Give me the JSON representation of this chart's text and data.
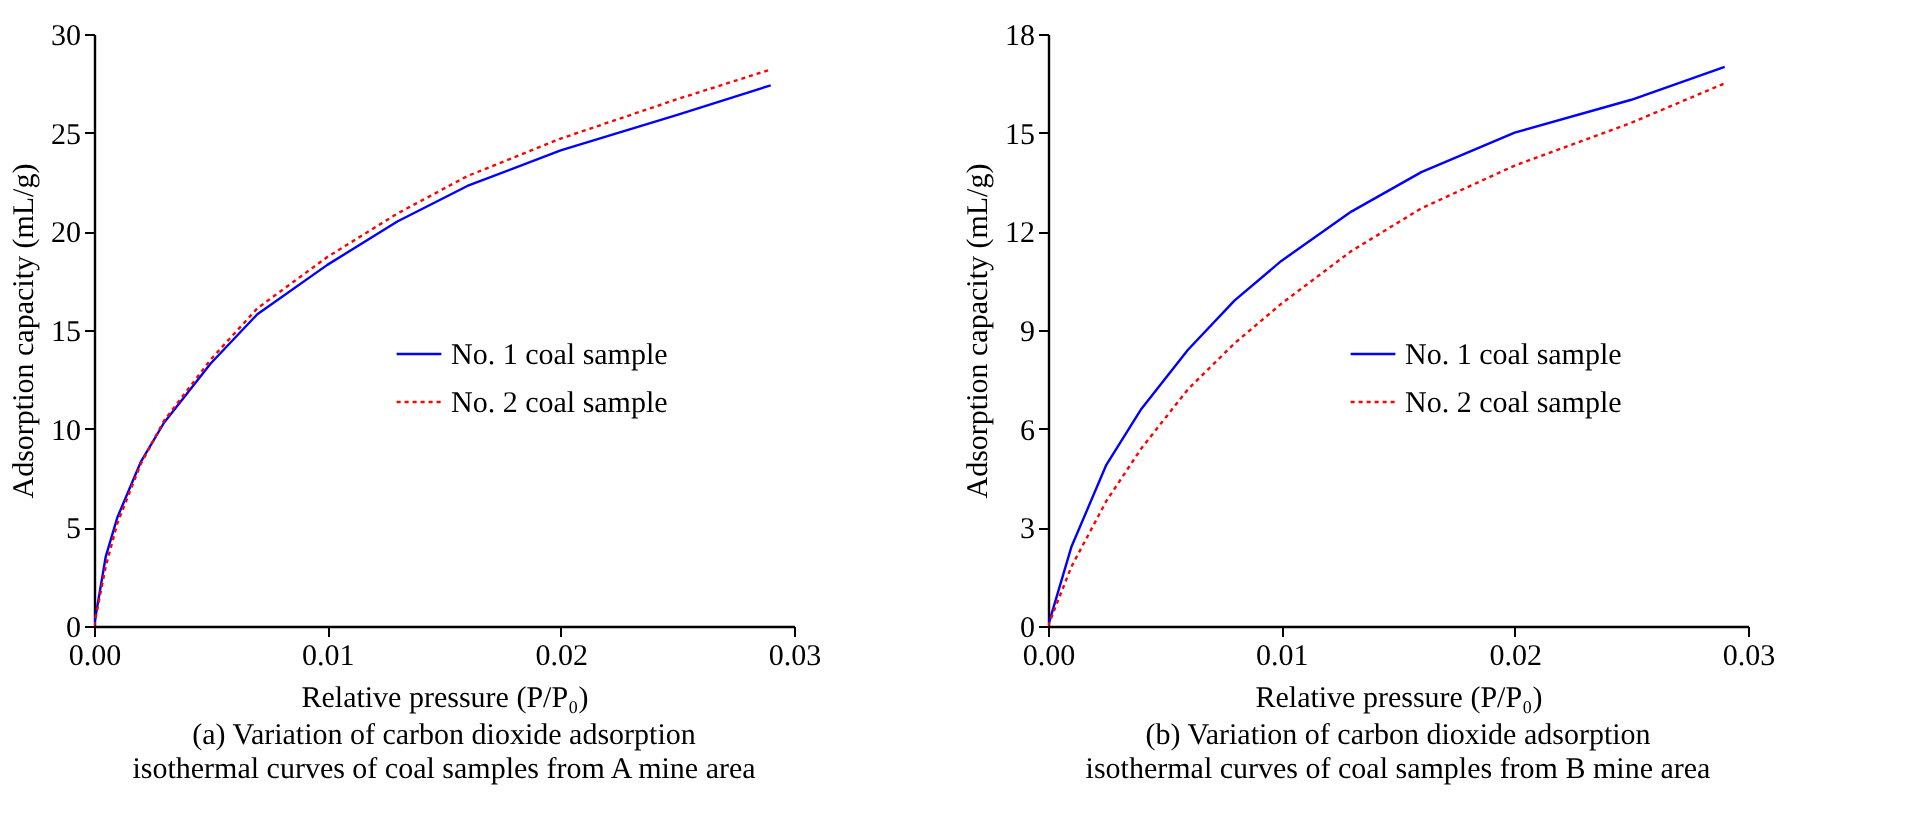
{
  "chart_data": [
    {
      "type": "line",
      "title": "(a) Variation of carbon dioxide adsorption\nisothermal curves of coal samples from A mine area",
      "xlabel": "Relative pressure (P/P₀)",
      "ylabel": "Adsorption capacity (mL/g)",
      "xlim": [
        0,
        0.03
      ],
      "xticks": [
        {
          "value": 0,
          "label": "0.00"
        },
        0.01,
        0.02,
        0.03
      ],
      "ylim": [
        0,
        30
      ],
      "yticks": [
        0,
        5,
        10,
        15,
        20,
        25,
        30
      ],
      "grid": false,
      "legend": "right",
      "series": [
        {
          "name": "No. 1 coal sample",
          "color": "#0000ff",
          "line_style": "solid",
          "x": [
            0,
            0.0005,
            0.001,
            0.002,
            0.003,
            0.005,
            0.007,
            0.01,
            0.013,
            0.016,
            0.02,
            0.025,
            0.029
          ],
          "values": [
            0,
            3.5,
            5.5,
            8.3,
            10.3,
            13.3,
            15.8,
            18.3,
            20.5,
            22.3,
            24.1,
            25.9,
            27.4
          ]
        },
        {
          "name": "No. 2 coal sample",
          "color": "#ff0000",
          "line_style": "dotted",
          "x": [
            0,
            0.0005,
            0.001,
            0.002,
            0.003,
            0.005,
            0.007,
            0.01,
            0.013,
            0.016,
            0.02,
            0.025,
            0.029
          ],
          "values": [
            0,
            3,
            5.2,
            8.2,
            10.4,
            13.5,
            16.1,
            18.7,
            20.9,
            22.8,
            24.7,
            26.7,
            28.2
          ]
        }
      ]
    },
    {
      "type": "line",
      "title": "(b) Variation of carbon dioxide adsorption\nisothermal curves of coal samples from B mine area",
      "xlabel": "Relative pressure (P/P₀)",
      "ylabel": "Adsorption capacity (mL/g)",
      "xlim": [
        0,
        0.03
      ],
      "xticks": [
        {
          "value": 0,
          "label": "0.00"
        },
        0.01,
        0.02,
        0.03
      ],
      "ylim": [
        0,
        18
      ],
      "yticks": [
        0,
        3,
        6,
        9,
        12,
        15,
        18
      ],
      "grid": false,
      "legend": "right",
      "series": [
        {
          "name": "No. 1 coal sample",
          "color": "#0000ff",
          "line_style": "solid",
          "x": [
            0,
            0.001,
            0.0025,
            0.004,
            0.006,
            0.008,
            0.01,
            0.013,
            0.016,
            0.02,
            0.025,
            0.029
          ],
          "values": [
            0,
            2.4,
            4.9,
            6.6,
            8.4,
            9.9,
            11.1,
            12.6,
            13.8,
            15,
            16,
            17
          ]
        },
        {
          "name": "No. 2 coal sample",
          "color": "#ff0000",
          "line_style": "dotted",
          "x": [
            0,
            0.001,
            0.0025,
            0.004,
            0.006,
            0.008,
            0.01,
            0.013,
            0.016,
            0.02,
            0.025,
            0.029
          ],
          "values": [
            0,
            1.8,
            3.8,
            5.4,
            7.2,
            8.6,
            9.8,
            11.4,
            12.7,
            14,
            15.3,
            16.5
          ]
        }
      ]
    }
  ]
}
